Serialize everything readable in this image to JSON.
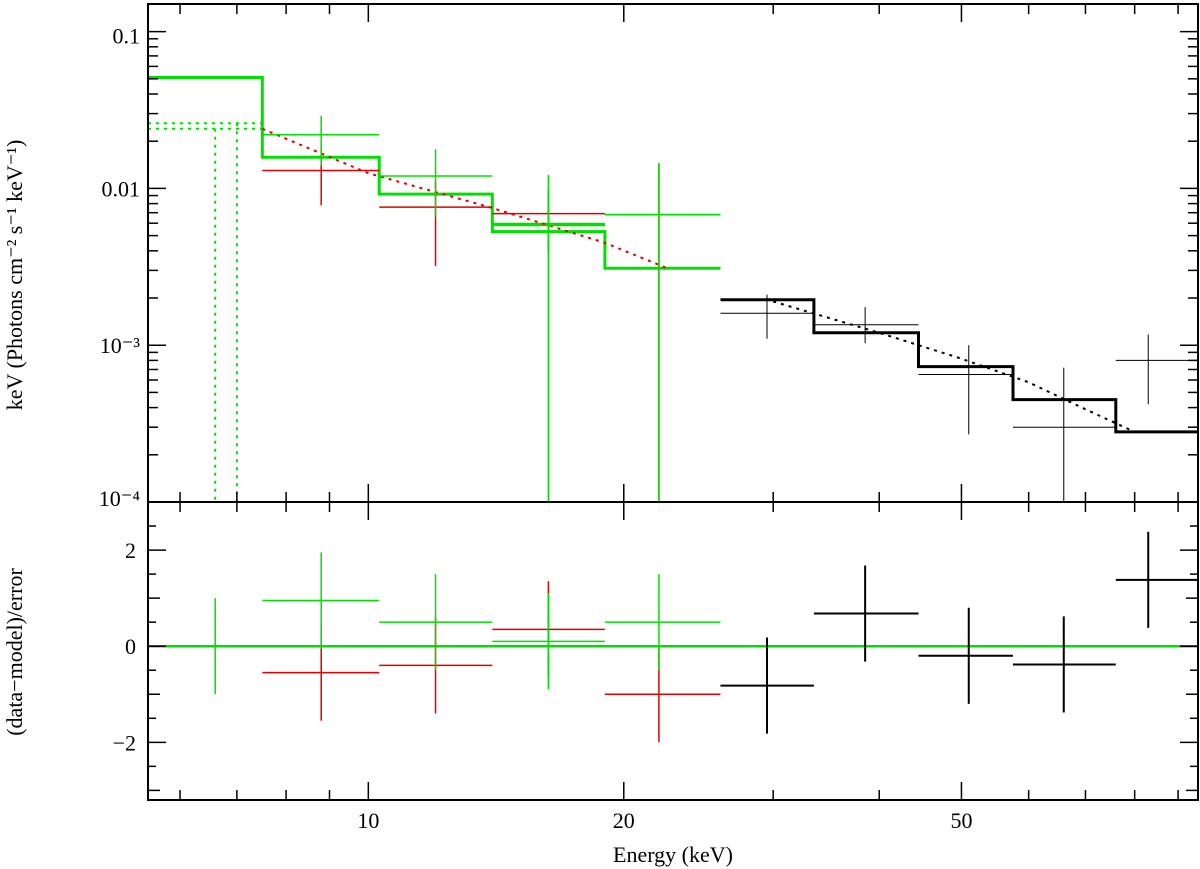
{
  "chart_data": [
    {
      "type": "scatter",
      "panel": "spectrum",
      "xlabel": "",
      "ylabel": "keV (Photons cm⁻² s⁻¹ keV⁻¹)",
      "xscale": "log",
      "yscale": "log",
      "xlim": [
        5.5,
        95
      ],
      "ylim": [
        0.0001,
        0.15
      ],
      "y_tick_labels": [
        "0.1",
        "0.01",
        "10⁻³",
        "10⁻⁴"
      ],
      "y_tick_values": [
        0.1,
        0.01,
        0.001,
        0.0001
      ],
      "colors": {
        "red": "#e00000",
        "green": "#00e000",
        "black": "#000000"
      },
      "series": [
        {
          "color": "red",
          "data": [
            {
              "x": 8.8,
              "xlo": 7.5,
              "xhi": 10.3,
              "y": 0.013,
              "ylo": 0.0078,
              "yhi": 0.0182
            },
            {
              "x": 12.0,
              "xlo": 10.3,
              "xhi": 14.0,
              "y": 0.0076,
              "ylo": 0.0032,
              "yhi": 0.0112
            },
            {
              "x": 16.3,
              "xlo": 14.0,
              "xhi": 19.0,
              "y": 0.0069,
              "ylo": 0.0038,
              "yhi": 0.0098
            },
            {
              "x": 22.0,
              "xlo": 19.0,
              "xhi": 26.0,
              "y": 0.0068,
              "ylo": 0.0001,
              "yhi": 0.0145
            }
          ]
        },
        {
          "color": "green",
          "data": [
            {
              "x": 8.8,
              "xlo": 7.5,
              "xhi": 10.3,
              "y": 0.022,
              "ylo": 0.014,
              "yhi": 0.029
            },
            {
              "x": 12.0,
              "xlo": 10.3,
              "xhi": 14.0,
              "y": 0.012,
              "ylo": 0.0066,
              "yhi": 0.0178
            },
            {
              "x": 16.3,
              "xlo": 14.0,
              "xhi": 19.0,
              "y": 0.0058,
              "ylo": 0.0001,
              "yhi": 0.0122
            },
            {
              "x": 22.0,
              "xlo": 19.0,
              "xhi": 26.0,
              "y": 0.0068,
              "ylo": 0.0001,
              "yhi": 0.0145
            }
          ]
        },
        {
          "color": "black",
          "data": [
            {
              "x": 29.5,
              "xlo": 26.0,
              "xhi": 33.5,
              "y": 0.0016,
              "ylo": 0.0011,
              "yhi": 0.0021
            },
            {
              "x": 38.5,
              "xlo": 33.5,
              "xhi": 44.5,
              "y": 0.00135,
              "ylo": 0.00103,
              "yhi": 0.00175
            },
            {
              "x": 51.0,
              "xlo": 44.5,
              "xhi": 57.5,
              "y": 0.00065,
              "ylo": 0.00027,
              "yhi": 0.001
            },
            {
              "x": 66.0,
              "xlo": 57.5,
              "xhi": 76.0,
              "y": 0.0003,
              "ylo": 0.0001,
              "yhi": 0.00072
            },
            {
              "x": 83.0,
              "xlo": 76.0,
              "xhi": 95.0,
              "y": 0.0008,
              "ylo": 0.00042,
              "yhi": 0.00117
            }
          ]
        }
      ],
      "model_steps": [
        {
          "color": "green",
          "edges": [
            5.5,
            7.5,
            10.3,
            14.0,
            19.0,
            26.0
          ],
          "values": [
            0.051,
            0.0158,
            0.0092,
            0.0053,
            0.0031
          ]
        },
        {
          "color": "green",
          "edges": [
            14.0,
            19.0
          ],
          "values": [
            0.0059
          ]
        },
        {
          "color": "black",
          "edges": [
            26.0,
            33.5,
            44.5,
            57.5,
            76.0,
            95.0
          ],
          "values": [
            0.00195,
            0.0012,
            0.00073,
            0.00045,
            0.00028
          ]
        }
      ],
      "model_curves": [
        {
          "color": "green",
          "style": "dotted",
          "x": [
            5.5,
            7.5
          ],
          "y": [
            0.026,
            0.026
          ]
        },
        {
          "color": "green",
          "style": "dotted",
          "x": [
            5.5,
            7.5
          ],
          "y": [
            0.024,
            0.024
          ]
        },
        {
          "color": "green",
          "style": "dotted",
          "x": [
            6.6,
            6.6
          ],
          "y": [
            0.024,
            0.0001
          ]
        },
        {
          "color": "green",
          "style": "dotted",
          "x": [
            7.0,
            7.0
          ],
          "y": [
            0.026,
            0.0001
          ]
        },
        {
          "color": "red",
          "style": "dotted",
          "x": [
            7.5,
            10.0,
            14.0,
            19.0,
            22.5
          ],
          "y": [
            0.024,
            0.0125,
            0.0075,
            0.0045,
            0.0031
          ]
        },
        {
          "color": "black",
          "style": "dotted",
          "x": [
            30,
            40,
            50,
            60,
            70,
            80
          ],
          "y": [
            0.0019,
            0.0012,
            0.00082,
            0.00058,
            0.00039,
            0.00028
          ]
        }
      ]
    },
    {
      "type": "scatter",
      "panel": "residuals",
      "xlabel": "Energy (keV)",
      "ylabel": "(data−model)/error",
      "xscale": "log",
      "xlim": [
        5.5,
        95
      ],
      "ylim": [
        -3.2,
        3.0
      ],
      "x_tick_labels": [
        "10",
        "20",
        "50"
      ],
      "x_tick_values": [
        10,
        20,
        50
      ],
      "y_tick_labels": [
        "2",
        "0",
        "−2"
      ],
      "y_tick_values": [
        2,
        0,
        -2
      ],
      "zero_line_color": "green",
      "series": [
        {
          "color": "red",
          "data": [
            {
              "x": 8.8,
              "xlo": 7.5,
              "xhi": 10.3,
              "y": -0.55,
              "ylo": -1.55,
              "yhi": 0.45
            },
            {
              "x": 12.0,
              "xlo": 10.3,
              "xhi": 14.0,
              "y": -0.4,
              "ylo": -1.4,
              "yhi": 0.6
            },
            {
              "x": 16.3,
              "xlo": 14.0,
              "xhi": 19.0,
              "y": 0.35,
              "ylo": -0.65,
              "yhi": 1.35
            },
            {
              "x": 22.0,
              "xlo": 19.0,
              "xhi": 26.0,
              "y": -1.0,
              "ylo": -2.0,
              "yhi": 0.0
            }
          ]
        },
        {
          "color": "green",
          "data": [
            {
              "x": 6.6,
              "xlo": 6.6,
              "xhi": 6.6,
              "y": 0.0,
              "ylo": -1.0,
              "yhi": 1.0
            },
            {
              "x": 8.8,
              "xlo": 7.5,
              "xhi": 10.3,
              "y": 0.95,
              "ylo": -0.05,
              "yhi": 1.95
            },
            {
              "x": 12.0,
              "xlo": 10.3,
              "xhi": 14.0,
              "y": 0.5,
              "ylo": -0.5,
              "yhi": 1.5
            },
            {
              "x": 16.3,
              "xlo": 14.0,
              "xhi": 19.0,
              "y": 0.1,
              "ylo": -0.9,
              "yhi": 1.1
            },
            {
              "x": 22.0,
              "xlo": 19.0,
              "xhi": 26.0,
              "y": 0.5,
              "ylo": -0.5,
              "yhi": 1.5
            }
          ]
        },
        {
          "color": "black",
          "data": [
            {
              "x": 29.5,
              "xlo": 26.0,
              "xhi": 33.5,
              "y": -0.82,
              "ylo": -1.82,
              "yhi": 0.18
            },
            {
              "x": 38.5,
              "xlo": 33.5,
              "xhi": 44.5,
              "y": 0.68,
              "ylo": -0.32,
              "yhi": 1.68
            },
            {
              "x": 51.0,
              "xlo": 44.5,
              "xhi": 57.5,
              "y": -0.2,
              "ylo": -1.2,
              "yhi": 0.8
            },
            {
              "x": 66.0,
              "xlo": 57.5,
              "xhi": 76.0,
              "y": -0.38,
              "ylo": -1.38,
              "yhi": 0.62
            },
            {
              "x": 83.0,
              "xlo": 76.0,
              "xhi": 95.0,
              "y": 1.38,
              "ylo": 0.38,
              "yhi": 2.38
            }
          ]
        }
      ]
    }
  ]
}
